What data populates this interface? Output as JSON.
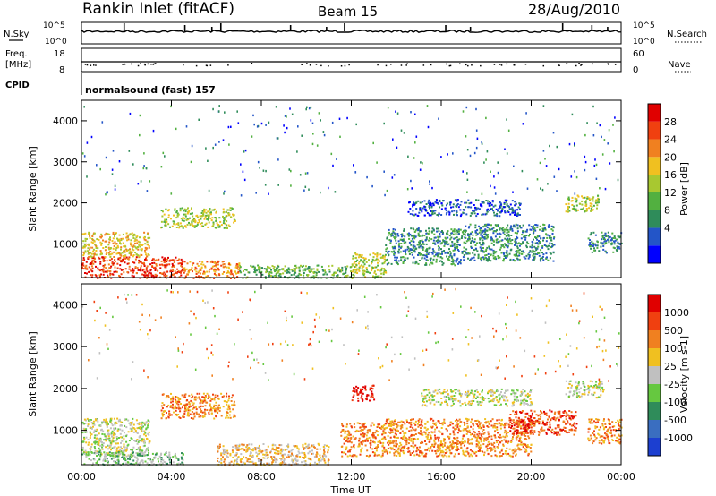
{
  "header": {
    "station": "Rankin Inlet (fitACF)",
    "beam": "Beam 15",
    "date": "28/Aug/2010"
  },
  "top_panels": {
    "nsky_label": "N.Sky",
    "nsky_ticks": [
      "10^5",
      "10^0"
    ],
    "nsearch_label": "N.Search",
    "nsearch_ticks": [
      "10^5",
      "10^0"
    ],
    "freq_label_line1": "Freq.",
    "freq_label_line2": "[MHz]",
    "freq_ticks": [
      "18",
      "8"
    ],
    "nave_label": "Nave",
    "nave_ticks": [
      "60",
      "0"
    ],
    "cpid_label": "CPID",
    "cpid_value": "normalsound (fast) 157"
  },
  "x_axis": {
    "label": "Time UT",
    "ticks": [
      "00:00",
      "04:00",
      "08:00",
      "12:00",
      "16:00",
      "20:00",
      "00:00"
    ]
  },
  "y_axis": {
    "label": "Slant Range [km]",
    "ticks": [
      "4000",
      "3000",
      "2000",
      "1000"
    ]
  },
  "power_scale": {
    "label": "Power [dB]",
    "ticks": [
      "28",
      "24",
      "20",
      "16",
      "12",
      "8",
      "4"
    ],
    "colors": [
      "#0000ff",
      "#2355c8",
      "#2f8c5a",
      "#52b040",
      "#a8c830",
      "#f0c020",
      "#f08020",
      "#f04010",
      "#e00000"
    ]
  },
  "velocity_scale": {
    "label": "Velocity [m s-1]",
    "ticks": [
      "1000",
      "500",
      "100",
      "25",
      "-25",
      "-100",
      "-500",
      "-1000"
    ],
    "colors": [
      "#1c3fd0",
      "#3a6ec0",
      "#2f8c5a",
      "#66c840",
      "#c0c0c0",
      "#f0c020",
      "#f08020",
      "#f04010",
      "#e00000"
    ]
  },
  "chart_data": [
    {
      "type": "heatmap",
      "title": "Power",
      "xlabel": "Time UT",
      "ylabel": "Slant Range [km]",
      "xlim": [
        0,
        24
      ],
      "ylim": [
        180,
        4500
      ],
      "colorbar": "Power [dB]",
      "regions": [
        {
          "t0": 0.0,
          "t1": 4.5,
          "r0": 180,
          "r1": 700,
          "level": 7
        },
        {
          "t0": 0.0,
          "t1": 3.0,
          "r0": 700,
          "r1": 1300,
          "level": 5
        },
        {
          "t0": 3.5,
          "t1": 6.8,
          "r0": 1400,
          "r1": 1900,
          "level": 4
        },
        {
          "t0": 4.5,
          "t1": 7.0,
          "r0": 180,
          "r1": 600,
          "level": 6
        },
        {
          "t0": 7.0,
          "t1": 12.0,
          "r0": 180,
          "r1": 500,
          "level": 3
        },
        {
          "t0": 12.0,
          "t1": 13.5,
          "r0": 180,
          "r1": 800,
          "level": 4
        },
        {
          "t0": 13.5,
          "t1": 17.0,
          "r0": 500,
          "r1": 1400,
          "level": 2
        },
        {
          "t0": 14.5,
          "t1": 19.5,
          "r0": 1700,
          "r1": 2100,
          "level": 1
        },
        {
          "t0": 17.0,
          "t1": 21.0,
          "r0": 600,
          "r1": 1500,
          "level": 2
        },
        {
          "t0": 21.5,
          "t1": 23.0,
          "r0": 1800,
          "r1": 2200,
          "level": 4
        },
        {
          "t0": 22.5,
          "t1": 24.0,
          "r0": 800,
          "r1": 1300,
          "level": 2
        }
      ]
    },
    {
      "type": "heatmap",
      "title": "Velocity",
      "xlabel": "Time UT",
      "ylabel": "Slant Range [km]",
      "xlim": [
        0,
        24
      ],
      "ylim": [
        180,
        4500
      ],
      "colorbar": "Velocity [m s-1]",
      "regions": [
        {
          "t0": 0.0,
          "t1": 3.0,
          "r0": 400,
          "r1": 1300,
          "level": 4
        },
        {
          "t0": 0.0,
          "t1": 4.5,
          "r0": 180,
          "r1": 500,
          "level": 3
        },
        {
          "t0": 3.5,
          "t1": 6.8,
          "r0": 1300,
          "r1": 1900,
          "level": 6
        },
        {
          "t0": 6.0,
          "t1": 11.0,
          "r0": 180,
          "r1": 700,
          "level": 5
        },
        {
          "t0": 11.5,
          "t1": 13.5,
          "r0": 400,
          "r1": 1200,
          "level": 6
        },
        {
          "t0": 12.0,
          "t1": 13.0,
          "r0": 1700,
          "r1": 2100,
          "level": 8
        },
        {
          "t0": 13.5,
          "t1": 20.0,
          "r0": 400,
          "r1": 1300,
          "level": 6
        },
        {
          "t0": 15.0,
          "t1": 20.0,
          "r0": 1600,
          "r1": 2000,
          "level": 4
        },
        {
          "t0": 19.0,
          "t1": 22.0,
          "r0": 900,
          "r1": 1500,
          "level": 7
        },
        {
          "t0": 21.5,
          "t1": 23.2,
          "r0": 1800,
          "r1": 2200,
          "level": 4
        },
        {
          "t0": 22.5,
          "t1": 24.0,
          "r0": 700,
          "r1": 1300,
          "level": 6
        }
      ]
    }
  ]
}
